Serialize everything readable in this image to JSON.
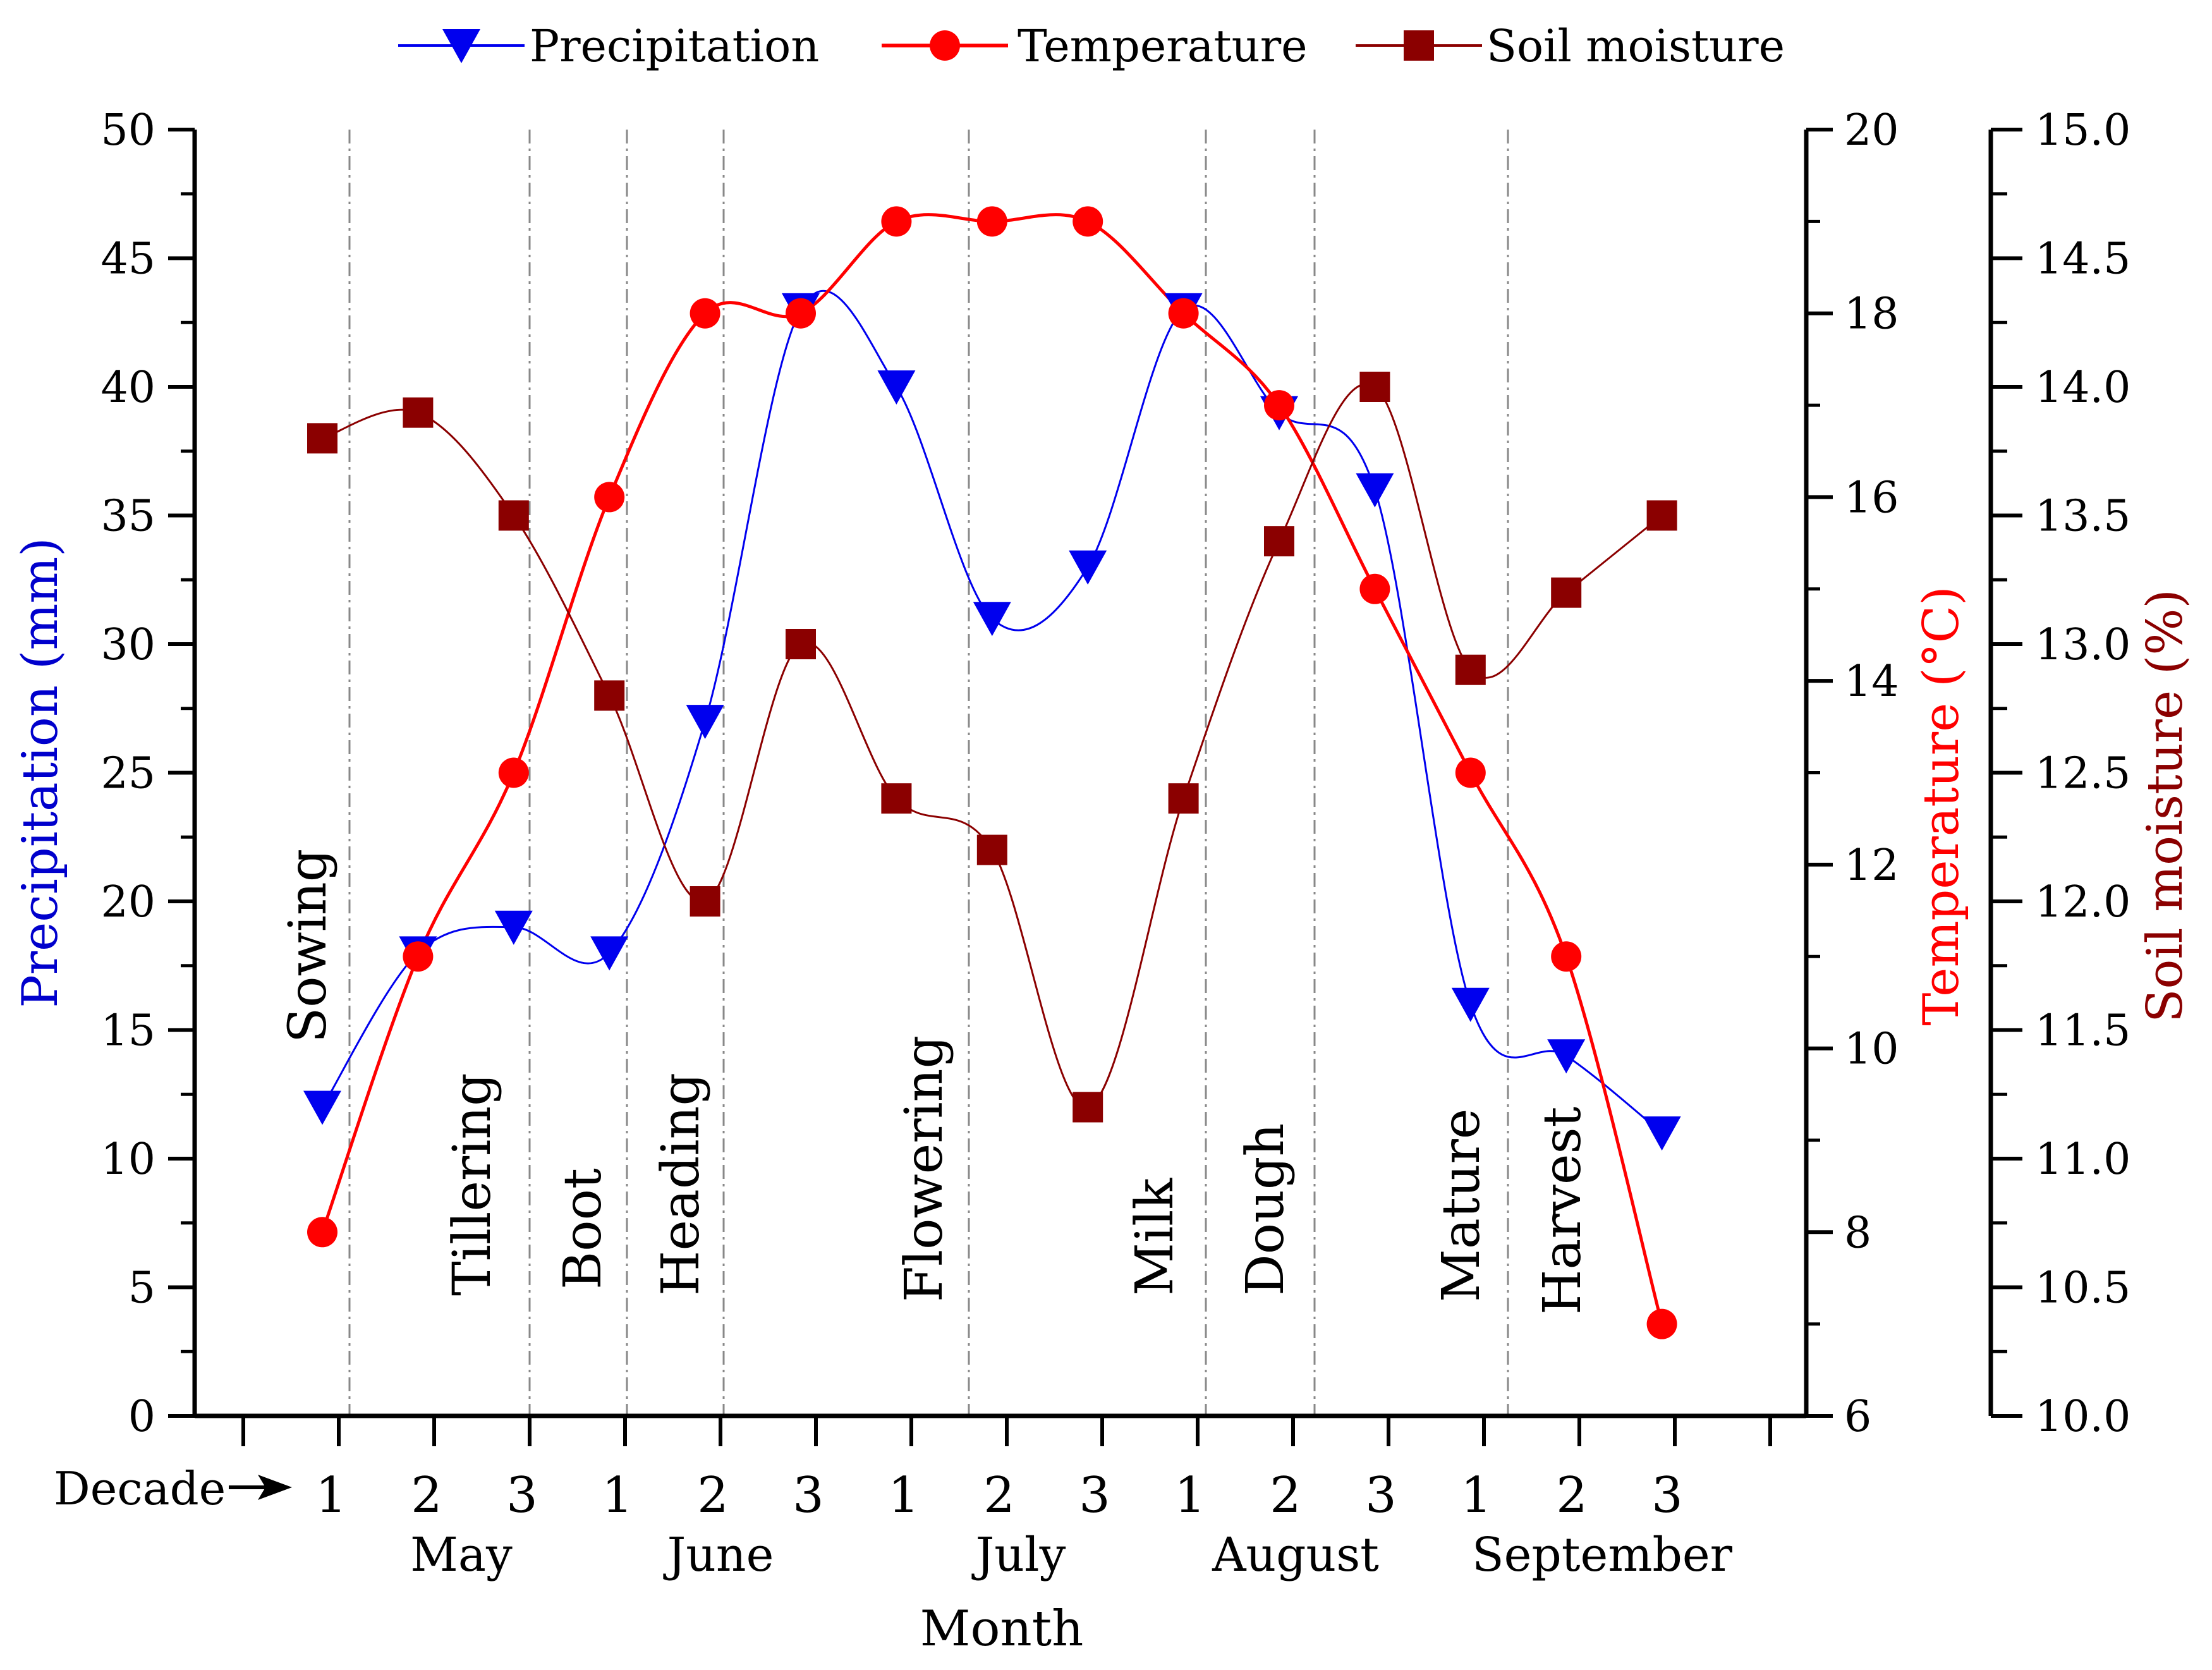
{
  "chart_data": {
    "type": "line",
    "title": "",
    "xlabel": "Month",
    "decade_label": "Decade",
    "categories": [
      "1",
      "2",
      "3",
      "1",
      "2",
      "3",
      "1",
      "2",
      "3",
      "1",
      "2",
      "3",
      "1",
      "2",
      "3"
    ],
    "months": [
      "May",
      "June",
      "July",
      "August",
      "September"
    ],
    "series": [
      {
        "name": "Precipitation",
        "axis": "left",
        "color": "#0000ee",
        "marker": "triangle-down",
        "values": [
          12,
          18,
          19,
          18,
          27,
          43,
          40,
          31,
          33,
          43,
          39,
          36,
          16,
          14,
          11
        ]
      },
      {
        "name": "Temperature",
        "axis": "right1",
        "color": "#ff0000",
        "marker": "circle",
        "values": [
          8.0,
          11.0,
          13.0,
          16.0,
          18.0,
          18.0,
          19.0,
          19.0,
          19.0,
          18.0,
          17.0,
          15.0,
          13.0,
          11.0,
          7.0
        ]
      },
      {
        "name": "Soil moisture",
        "axis": "right2",
        "color": "#8b0000",
        "marker": "square",
        "values": [
          13.8,
          13.9,
          13.5,
          12.8,
          12.0,
          13.0,
          12.4,
          12.2,
          11.2,
          12.4,
          13.4,
          14.0,
          12.9,
          13.2,
          13.5
        ]
      }
    ],
    "axes": {
      "left": {
        "label": "Precipitation (mm)",
        "color": "#0000cc",
        "ylim": [
          0,
          50
        ],
        "ticks": [
          "0",
          "5",
          "10",
          "15",
          "20",
          "25",
          "30",
          "35",
          "40",
          "45",
          "50"
        ]
      },
      "right1": {
        "label": "Temperature (°C)",
        "color": "#ff0000",
        "ylim": [
          6,
          20
        ],
        "ticks": [
          "6",
          "8",
          "10",
          "12",
          "14",
          "16",
          "18",
          "20"
        ]
      },
      "right2": {
        "label": "Soil moisture (%)",
        "color": "#8b0000",
        "ylim": [
          10.0,
          15.0
        ],
        "ticks": [
          "10.0",
          "10.5",
          "11.0",
          "11.5",
          "12.0",
          "12.5",
          "13.0",
          "13.5",
          "14.0",
          "14.5",
          "15.0"
        ]
      }
    },
    "stages": [
      "Sowing",
      "Tillering",
      "Boot",
      "Heading",
      "Flowering",
      "Milk",
      "Dough",
      "Mature",
      "Harvest"
    ],
    "legend_position": "top"
  }
}
